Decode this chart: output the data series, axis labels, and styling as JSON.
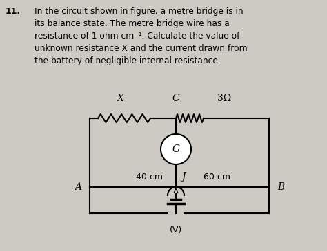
{
  "title_num": "11.",
  "text_lines": [
    "In the circuit shown in figure, a metre bridge is in",
    "its balance state. The metre bridge wire has a",
    "resistance of 1 ohm cm⁻¹. Calculate the value of",
    "unknown resistance X and the current drawn from",
    "the battery of negligible internal resistance."
  ],
  "label_X": "X",
  "label_C": "C",
  "label_3ohm": "3Ω",
  "label_40cm": "40 cm",
  "label_J": "J",
  "label_60cm": "60 cm",
  "label_A": "A",
  "label_B": "B",
  "label_G": "G",
  "bg_color": "#cdc9c3",
  "text_color": "#000000",
  "line_color": "#000000",
  "fig_width": 4.74,
  "fig_height": 3.65,
  "dpi": 100
}
